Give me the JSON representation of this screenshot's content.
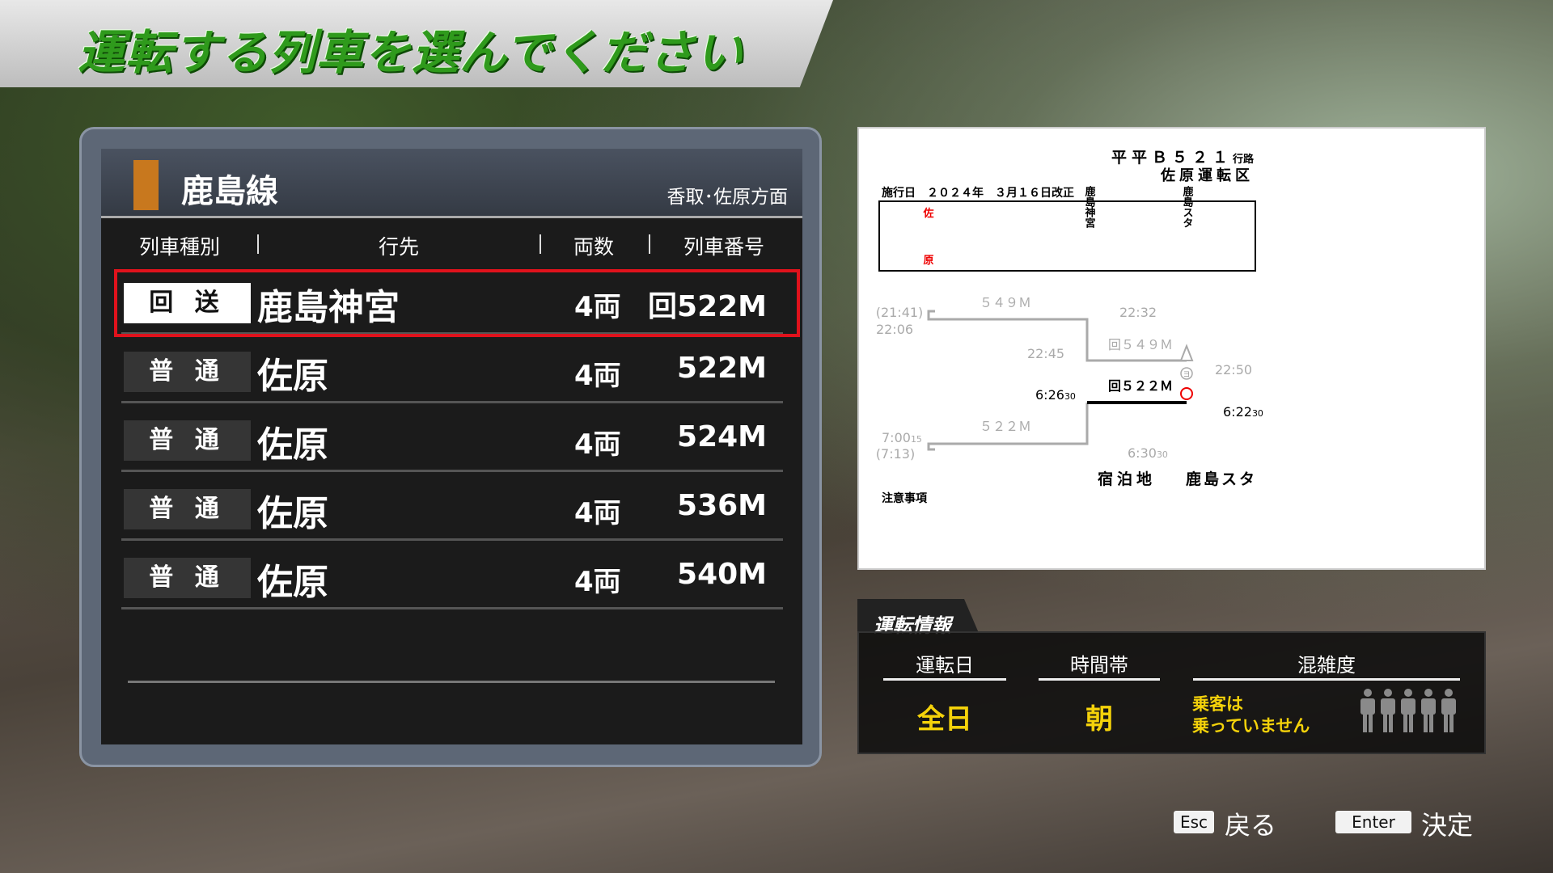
{
  "page_title": "運転する列車を選んでください",
  "train_list": {
    "line_name": "鹿島線",
    "line_color": "#c8781e",
    "direction": "香取･佐原方面",
    "columns": [
      "列車種別",
      "行先",
      "両数",
      "列車番号"
    ],
    "rows": [
      {
        "type": "回 送",
        "destination": "鹿島神宮",
        "cars": "4両",
        "number": "回522M",
        "selected": true
      },
      {
        "type": "普 通",
        "destination": "佐原",
        "cars": "4両",
        "number": "522M",
        "selected": false
      },
      {
        "type": "普 通",
        "destination": "佐原",
        "cars": "4両",
        "number": "524M",
        "selected": false
      },
      {
        "type": "普 通",
        "destination": "佐原",
        "cars": "4両",
        "number": "536M",
        "selected": false
      },
      {
        "type": "普 通",
        "destination": "佐原",
        "cars": "4両",
        "number": "540M",
        "selected": false
      }
    ]
  },
  "diagram": {
    "route_id": "平平Ｂ５２１",
    "route_suffix": "行路",
    "depot": "佐原運転区",
    "effective": "施行日　２０２４年　３月１６日改正",
    "stations": [
      {
        "top": "佐",
        "bottom": "原"
      },
      {
        "name": "鹿島神宮"
      },
      {
        "name": "鹿島スタ"
      }
    ],
    "labels": {
      "t549": "５４９Ｍ",
      "t549_dep_paren": "(21:41)",
      "t549_dep": "22:06",
      "t549_arr": "22:32",
      "r549": "回５４９Ｍ",
      "r549_dep": "22:45",
      "r549_arr": "22:50",
      "r522": "回５２２Ｍ",
      "r522_dep": "6:22",
      "r522_dep_sec": "30",
      "r522_arr": "6:26",
      "r522_arr_sec": "30",
      "t522": "５２２Ｍ",
      "t522_dep": "6:30",
      "t522_dep_sec": "30",
      "t522_arr": "7:00",
      "t522_arr_sec": "15",
      "t522_arr_paren": "(7:13)",
      "yo_mark": "ヨ",
      "stay_label": "宿泊地",
      "stay_place": "鹿島スタ",
      "notes": "注意事項"
    }
  },
  "info": {
    "title": "運転情報",
    "day_label": "運転日",
    "day_value": "全日",
    "time_label": "時間帯",
    "time_value": "朝",
    "crowd_label": "混雑度",
    "crowd_text_1": "乗客は",
    "crowd_text_2": "乗っていません",
    "crowd_level": 0,
    "crowd_max": 5
  },
  "footer": {
    "back_key": "Esc",
    "back_label": "戻る",
    "ok_key": "Enter",
    "ok_label": "決定"
  }
}
